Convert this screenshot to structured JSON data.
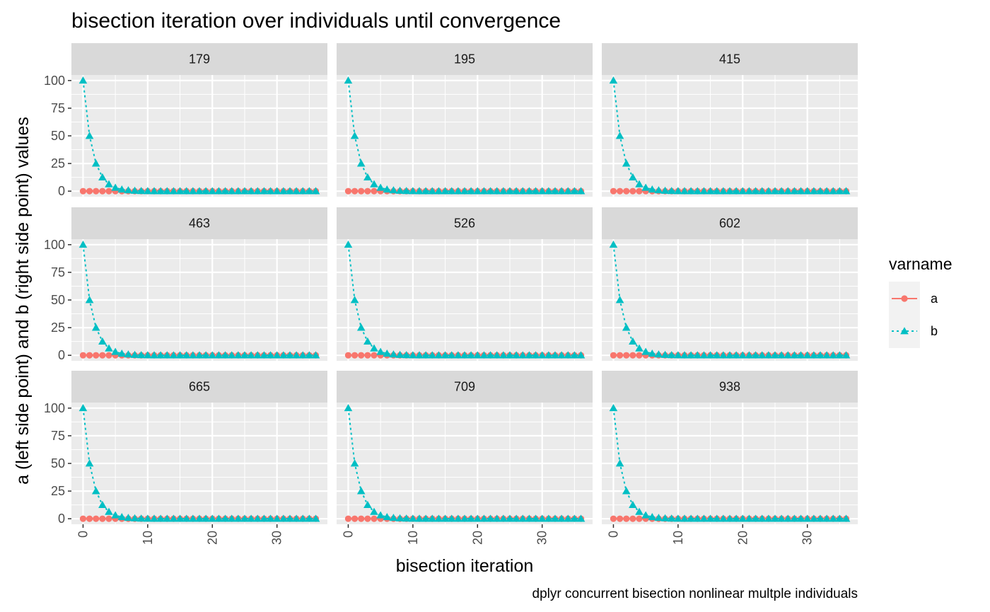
{
  "chart_data": {
    "type": "line",
    "title": "bisection iteration over individuals until convergence",
    "caption": "dplyr concurrent bisection nonlinear multple individuals",
    "xlabel": "bisection iteration",
    "ylabel": "a (left side point) and b (right side point) values",
    "xlim": [
      -1.8,
      37.8
    ],
    "ylim": [
      -5,
      105
    ],
    "x_ticks": [
      0,
      10,
      20,
      30
    ],
    "x_tick_labels": [
      "0",
      "10",
      "20",
      "30"
    ],
    "y_ticks": [
      0,
      25,
      50,
      75,
      100
    ],
    "y_tick_labels": [
      "0",
      "25",
      "50",
      "75",
      "100"
    ],
    "grid": true,
    "facets": [
      "179",
      "195",
      "415",
      "463",
      "526",
      "602",
      "665",
      "709",
      "938"
    ],
    "facet_layout": {
      "rows": 3,
      "cols": 3
    },
    "x": [
      0,
      1,
      2,
      3,
      4,
      5,
      6,
      7,
      8,
      9,
      10,
      11,
      12,
      13,
      14,
      15,
      16,
      17,
      18,
      19,
      20,
      21,
      22,
      23,
      24,
      25,
      26,
      27,
      28,
      29,
      30,
      31,
      32,
      33,
      34,
      35,
      36
    ],
    "series": [
      {
        "name": "a",
        "color": "#F8766D",
        "linetype": "solid",
        "marker": "circle",
        "values": [
          0,
          0,
          0,
          0,
          0,
          0,
          0,
          0,
          0,
          0,
          0,
          0,
          0,
          0,
          0,
          0,
          0,
          0,
          0,
          0,
          0,
          0,
          0,
          0,
          0,
          0,
          0,
          0,
          0,
          0,
          0,
          0,
          0,
          0,
          0,
          0,
          0
        ]
      },
      {
        "name": "b",
        "color": "#00BFC4",
        "linetype": "dotted",
        "marker": "triangle",
        "values": [
          100,
          50,
          25,
          12.5,
          6.25,
          3.125,
          1.5625,
          0.78,
          0.39,
          0.2,
          0.1,
          0.05,
          0.02,
          0.01,
          0.01,
          0,
          0,
          0,
          0,
          0,
          0,
          0,
          0,
          0,
          0,
          0,
          0,
          0,
          0,
          0,
          0,
          0,
          0,
          0,
          0,
          0,
          0
        ]
      }
    ],
    "legend": {
      "title": "varname",
      "position": "right",
      "entries": [
        "a",
        "b"
      ]
    }
  }
}
